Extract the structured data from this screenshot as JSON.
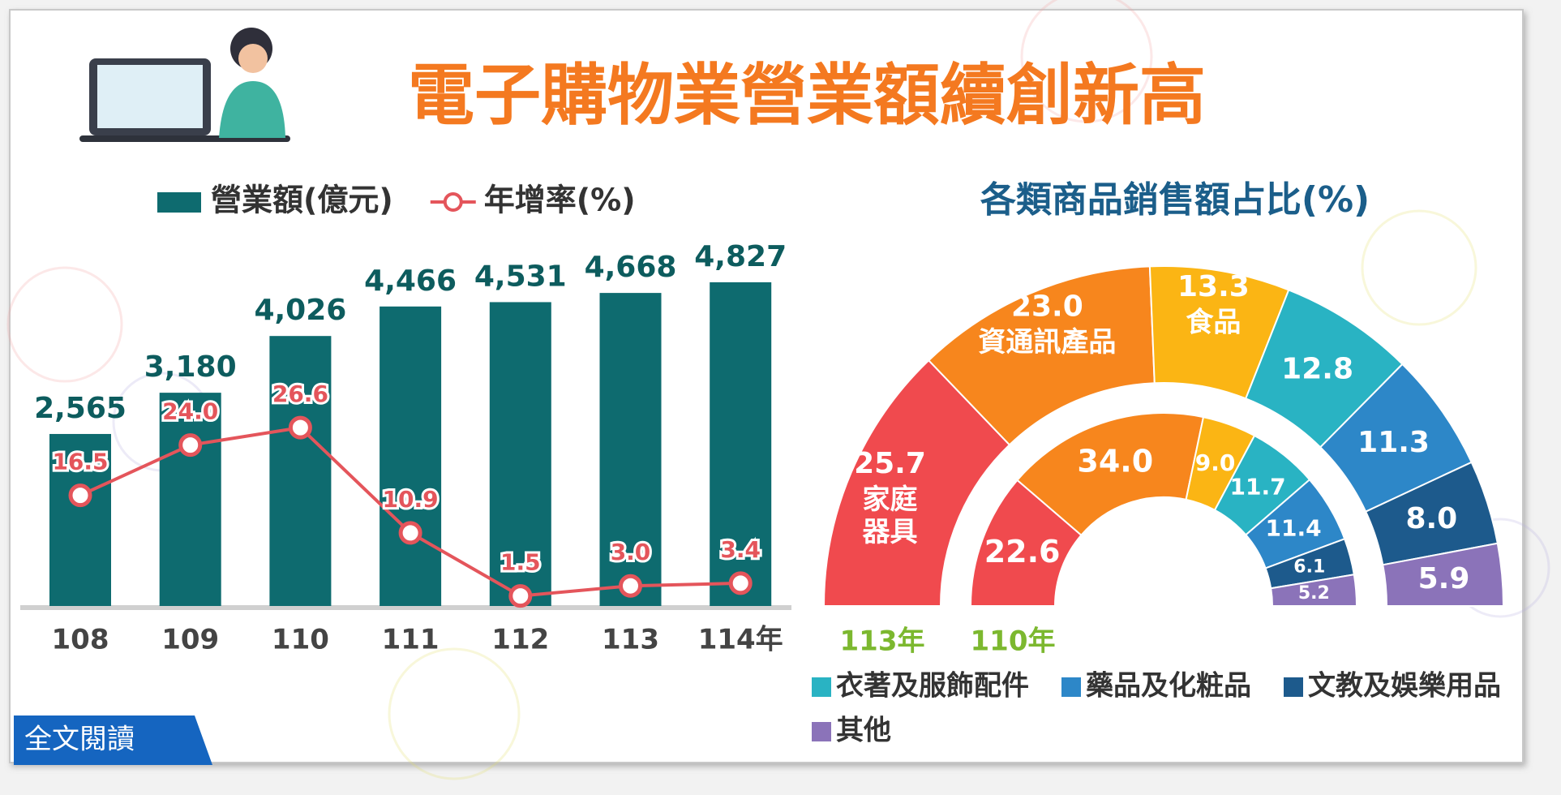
{
  "title": "電子購物業營業額續創新高",
  "button": "全文閱讀",
  "chart_data": [
    {
      "type": "bar",
      "categories": [
        "108",
        "109",
        "110",
        "111",
        "112",
        "113",
        "114年"
      ],
      "series": [
        {
          "name": "營業額(億元)",
          "type": "bar",
          "color": "#0e6b6f",
          "values": [
            2565,
            3180,
            4026,
            4466,
            4531,
            4668,
            4827
          ],
          "value_labels": [
            "2,565",
            "3,180",
            "4,026",
            "4,466",
            "4,531",
            "4,668",
            "4,827"
          ]
        },
        {
          "name": "年增率(%)",
          "type": "line",
          "axis": "y2",
          "color": "#e4555b",
          "values": [
            16.5,
            24.0,
            26.6,
            10.9,
            1.5,
            3.0,
            3.4
          ],
          "value_labels": [
            "16.5",
            "24.0",
            "26.6",
            "10.9",
            "1.5",
            "3.0",
            "3.4"
          ]
        }
      ],
      "ylim": [
        0,
        6000
      ],
      "y2lim": [
        0,
        60
      ]
    },
    {
      "type": "donut",
      "title": "各類商品銷售額占比(%)",
      "categories": [
        "家庭器具",
        "資通訊產品",
        "食品",
        "衣著及服飾配件",
        "藥品及化粧品",
        "文教及娛樂用品",
        "其他"
      ],
      "colors": [
        "#f04a4e",
        "#f7861d",
        "#fbb514",
        "#29b3c3",
        "#2d87c8",
        "#1d5a8c",
        "#8b73b9"
      ],
      "series": [
        {
          "name": "113年",
          "values": [
            25.7,
            23.0,
            13.3,
            12.8,
            11.3,
            8.0,
            5.9
          ],
          "value_labels": [
            "25.7",
            "23.0",
            "13.3",
            "12.8",
            "11.3",
            "8.0",
            "5.9"
          ]
        },
        {
          "name": "110年",
          "values": [
            22.6,
            34.0,
            9.0,
            11.7,
            11.4,
            6.1,
            5.2
          ],
          "value_labels": [
            "22.6",
            "34.0",
            "9.0",
            "11.7",
            "11.4",
            "6.1",
            "5.2"
          ]
        }
      ]
    }
  ]
}
